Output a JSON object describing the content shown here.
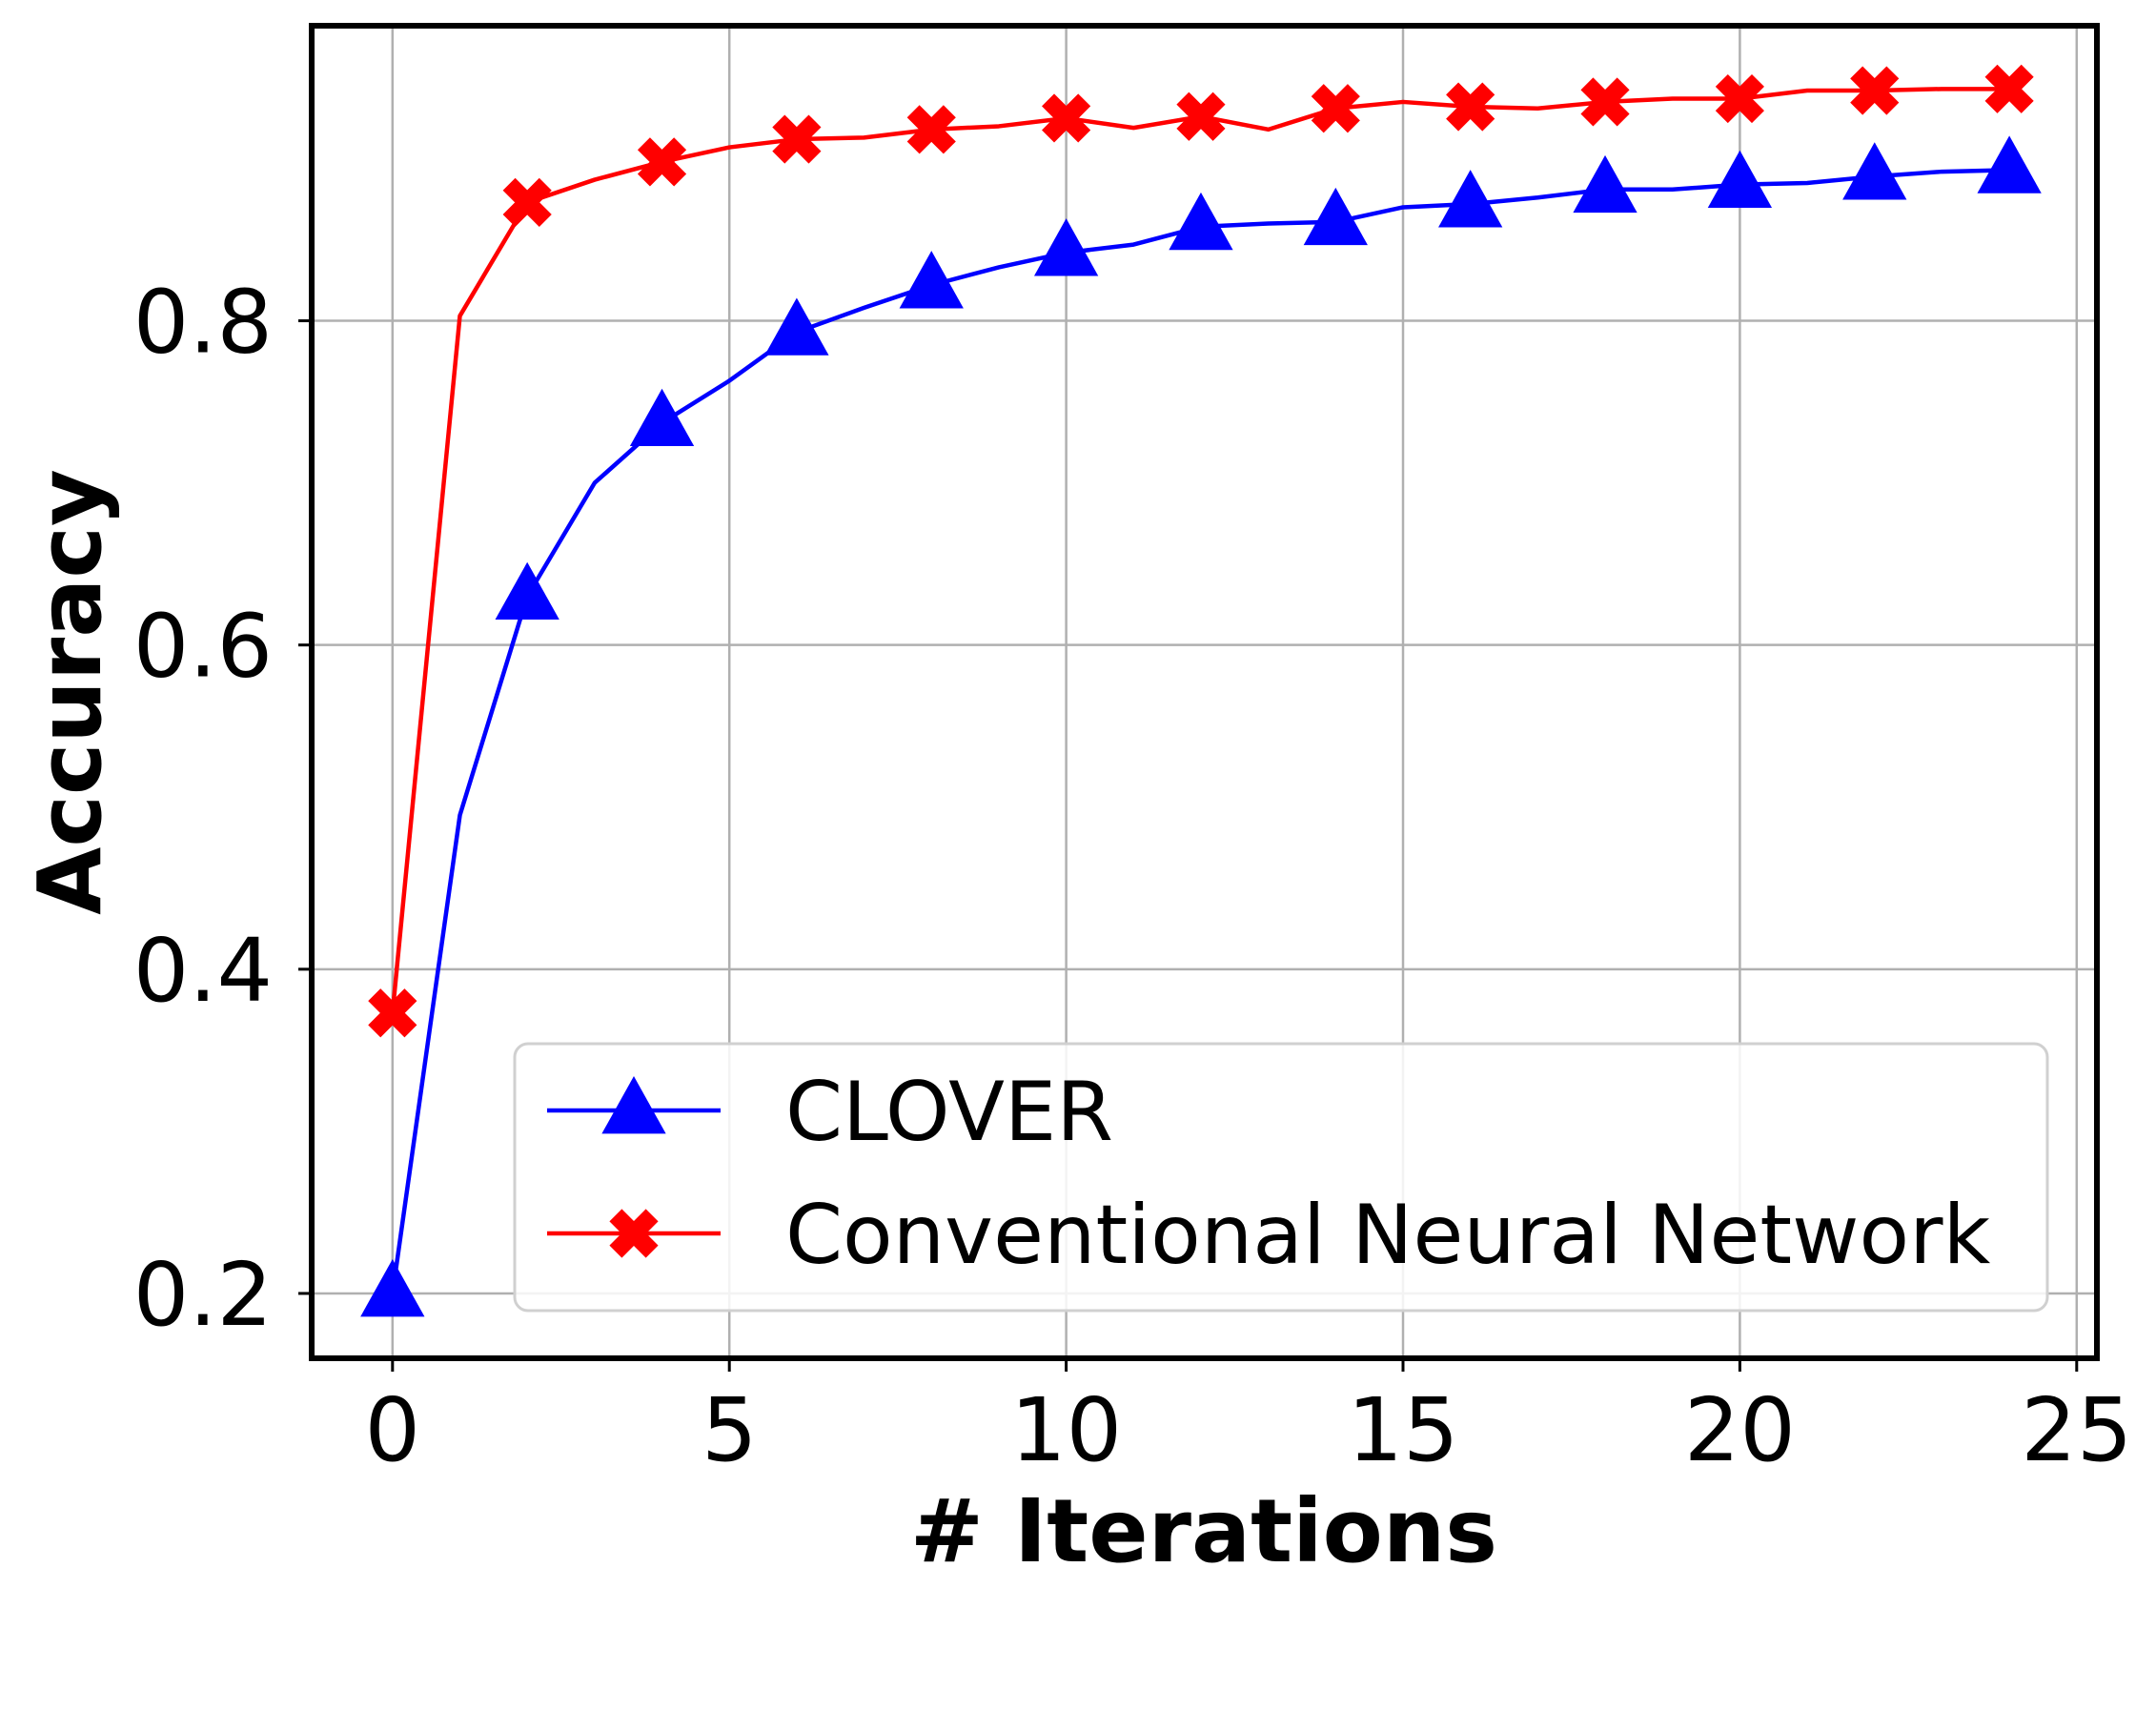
{
  "chart_data": {
    "type": "line",
    "xlabel": "# Iterations",
    "ylabel": "Accuracy",
    "xlim": [
      -1.2,
      25.3
    ],
    "ylim": [
      0.16,
      0.982
    ],
    "xticks": [
      0,
      5,
      10,
      15,
      20,
      25
    ],
    "yticks": [
      0.2,
      0.4,
      0.6,
      0.8
    ],
    "xtick_labels": [
      "0",
      "5",
      "10",
      "15",
      "20",
      "25"
    ],
    "ytick_labels": [
      "0.2",
      "0.4",
      "0.6",
      "0.8"
    ],
    "grid": true,
    "legend_position": "lower-right",
    "x": [
      0,
      1,
      2,
      3,
      4,
      5,
      6,
      7,
      8,
      9,
      10,
      11,
      12,
      13,
      14,
      15,
      16,
      17,
      18,
      19,
      20,
      21,
      22,
      23,
      24
    ],
    "series": [
      {
        "name": "CLOVER",
        "color": "#0000ff",
        "marker": "triangle",
        "marker_every": 2,
        "values": [
          0.2,
          0.495,
          0.63,
          0.7,
          0.737,
          0.763,
          0.793,
          0.808,
          0.822,
          0.833,
          0.842,
          0.847,
          0.858,
          0.86,
          0.861,
          0.87,
          0.872,
          0.876,
          0.881,
          0.881,
          0.884,
          0.885,
          0.889,
          0.892,
          0.893
        ]
      },
      {
        "name": "Conventional Neural Network",
        "color": "#ff0000",
        "marker": "x",
        "marker_every": 2,
        "values": [
          0.373,
          0.803,
          0.873,
          0.887,
          0.898,
          0.907,
          0.912,
          0.913,
          0.918,
          0.92,
          0.925,
          0.919,
          0.926,
          0.918,
          0.931,
          0.935,
          0.932,
          0.931,
          0.935,
          0.937,
          0.937,
          0.942,
          0.942,
          0.943,
          0.943
        ]
      }
    ]
  }
}
